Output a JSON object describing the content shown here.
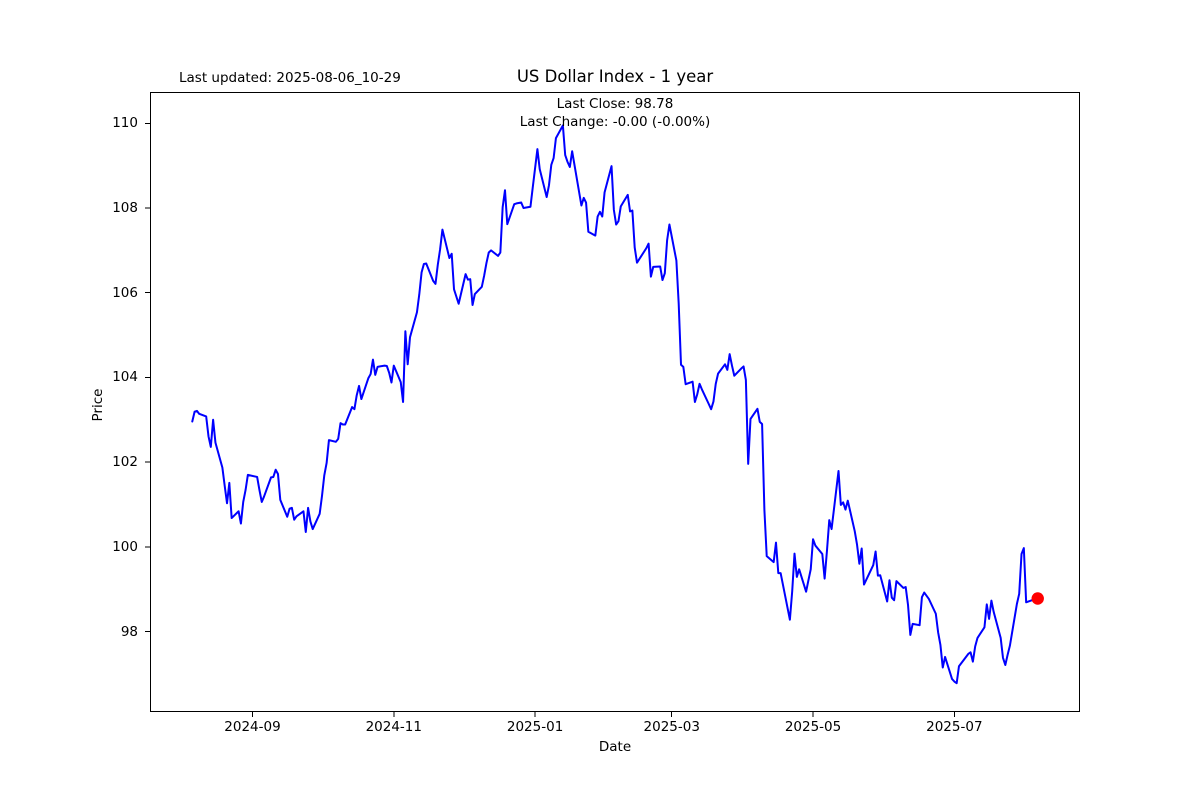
{
  "figure": {
    "last_updated": "Last updated: 2025-08-06_10-29",
    "title": "US Dollar Index - 1 year",
    "annotation": {
      "line1": "Last Close: 98.78",
      "line2": "Last Change: -0.00 (-0.00%)"
    },
    "xlabel": "Date",
    "ylabel": "Price"
  },
  "chart_data": {
    "type": "line",
    "title": "US Dollar Index - 1 year",
    "xlabel": "Date",
    "ylabel": "Price",
    "grid": false,
    "legend": false,
    "background": "#ffffff",
    "line_color": "#0000ff",
    "line_width": 2,
    "last_point_marker": {
      "color": "#ff0000",
      "radius": 6.2
    },
    "x_start_date": "2024-08-06",
    "xlim_days": [
      -18.25,
      383.25
    ],
    "ylim": [
      96.1,
      110.74
    ],
    "y_ticks": [
      98,
      100,
      102,
      104,
      106,
      108,
      110
    ],
    "x_ticks": [
      {
        "date": "2024-09-01",
        "label": "2024-09"
      },
      {
        "date": "2024-11-01",
        "label": "2024-11"
      },
      {
        "date": "2025-01-01",
        "label": "2025-01"
      },
      {
        "date": "2025-03-01",
        "label": "2025-03"
      },
      {
        "date": "2025-05-01",
        "label": "2025-05"
      },
      {
        "date": "2025-07-01",
        "label": "2025-07"
      }
    ],
    "series": [
      {
        "name": "US Dollar Index",
        "last_close": 98.78,
        "last_change": "-0.00 (-0.00%)",
        "points": [
          [
            "2024-08-06",
            102.96
          ],
          [
            "2024-08-07",
            103.19
          ],
          [
            "2024-08-08",
            103.21
          ],
          [
            "2024-08-09",
            103.14
          ],
          [
            "2024-08-12",
            103.08
          ],
          [
            "2024-08-13",
            102.61
          ],
          [
            "2024-08-14",
            102.36
          ],
          [
            "2024-08-15",
            103.0
          ],
          [
            "2024-08-16",
            102.46
          ],
          [
            "2024-08-19",
            101.87
          ],
          [
            "2024-08-20",
            101.44
          ],
          [
            "2024-08-21",
            101.03
          ],
          [
            "2024-08-22",
            101.51
          ],
          [
            "2024-08-23",
            100.68
          ],
          [
            "2024-08-26",
            100.84
          ],
          [
            "2024-08-27",
            100.55
          ],
          [
            "2024-08-28",
            101.06
          ],
          [
            "2024-08-29",
            101.34
          ],
          [
            "2024-08-30",
            101.7
          ],
          [
            "2024-09-03",
            101.65
          ],
          [
            "2024-09-04",
            101.34
          ],
          [
            "2024-09-05",
            101.06
          ],
          [
            "2024-09-06",
            101.19
          ],
          [
            "2024-09-09",
            101.64
          ],
          [
            "2024-09-10",
            101.65
          ],
          [
            "2024-09-11",
            101.82
          ],
          [
            "2024-09-12",
            101.72
          ],
          [
            "2024-09-13",
            101.11
          ],
          [
            "2024-09-16",
            100.71
          ],
          [
            "2024-09-17",
            100.9
          ],
          [
            "2024-09-18",
            100.92
          ],
          [
            "2024-09-19",
            100.64
          ],
          [
            "2024-09-20",
            100.72
          ],
          [
            "2024-09-23",
            100.84
          ],
          [
            "2024-09-24",
            100.35
          ],
          [
            "2024-09-25",
            100.92
          ],
          [
            "2024-09-26",
            100.6
          ],
          [
            "2024-09-27",
            100.42
          ],
          [
            "2024-09-30",
            100.78
          ],
          [
            "2024-10-01",
            101.2
          ],
          [
            "2024-10-02",
            101.69
          ],
          [
            "2024-10-03",
            101.98
          ],
          [
            "2024-10-04",
            102.52
          ],
          [
            "2024-10-07",
            102.48
          ],
          [
            "2024-10-08",
            102.55
          ],
          [
            "2024-10-09",
            102.92
          ],
          [
            "2024-10-10",
            102.89
          ],
          [
            "2024-10-11",
            102.89
          ],
          [
            "2024-10-14",
            103.3
          ],
          [
            "2024-10-15",
            103.25
          ],
          [
            "2024-10-16",
            103.58
          ],
          [
            "2024-10-17",
            103.8
          ],
          [
            "2024-10-18",
            103.49
          ],
          [
            "2024-10-21",
            103.98
          ],
          [
            "2024-10-22",
            104.08
          ],
          [
            "2024-10-23",
            104.42
          ],
          [
            "2024-10-24",
            104.06
          ],
          [
            "2024-10-25",
            104.25
          ],
          [
            "2024-10-28",
            104.28
          ],
          [
            "2024-10-29",
            104.27
          ],
          [
            "2024-10-30",
            104.11
          ],
          [
            "2024-10-31",
            103.88
          ],
          [
            "2024-11-01",
            104.28
          ],
          [
            "2024-11-04",
            103.89
          ],
          [
            "2024-11-05",
            103.42
          ],
          [
            "2024-11-06",
            105.09
          ],
          [
            "2024-11-07",
            104.31
          ],
          [
            "2024-11-08",
            104.95
          ],
          [
            "2024-11-11",
            105.54
          ],
          [
            "2024-11-12",
            105.96
          ],
          [
            "2024-11-13",
            106.48
          ],
          [
            "2024-11-14",
            106.68
          ],
          [
            "2024-11-15",
            106.69
          ],
          [
            "2024-11-18",
            106.28
          ],
          [
            "2024-11-19",
            106.21
          ],
          [
            "2024-11-20",
            106.66
          ],
          [
            "2024-11-21",
            107.03
          ],
          [
            "2024-11-22",
            107.49
          ],
          [
            "2024-11-25",
            106.82
          ],
          [
            "2024-11-26",
            106.92
          ],
          [
            "2024-11-27",
            106.08
          ],
          [
            "2024-11-29",
            105.74
          ],
          [
            "2024-12-02",
            106.44
          ],
          [
            "2024-12-03",
            106.31
          ],
          [
            "2024-12-04",
            106.32
          ],
          [
            "2024-12-05",
            105.71
          ],
          [
            "2024-12-06",
            105.97
          ],
          [
            "2024-12-09",
            106.14
          ],
          [
            "2024-12-10",
            106.4
          ],
          [
            "2024-12-11",
            106.7
          ],
          [
            "2024-12-12",
            106.95
          ],
          [
            "2024-12-13",
            107.0
          ],
          [
            "2024-12-16",
            106.87
          ],
          [
            "2024-12-17",
            106.95
          ],
          [
            "2024-12-18",
            108.02
          ],
          [
            "2024-12-19",
            108.42
          ],
          [
            "2024-12-20",
            107.62
          ],
          [
            "2024-12-23",
            108.09
          ],
          [
            "2024-12-24",
            108.11
          ],
          [
            "2024-12-26",
            108.13
          ],
          [
            "2024-12-27",
            108.0
          ],
          [
            "2024-12-30",
            108.03
          ],
          [
            "2024-12-31",
            108.49
          ],
          [
            "2025-01-02",
            109.39
          ],
          [
            "2025-01-03",
            108.92
          ],
          [
            "2025-01-06",
            108.26
          ],
          [
            "2025-01-07",
            108.54
          ],
          [
            "2025-01-08",
            109.02
          ],
          [
            "2025-01-09",
            109.18
          ],
          [
            "2025-01-10",
            109.65
          ],
          [
            "2025-01-13",
            109.95
          ],
          [
            "2025-01-14",
            109.25
          ],
          [
            "2025-01-15",
            109.09
          ],
          [
            "2025-01-16",
            108.97
          ],
          [
            "2025-01-17",
            109.34
          ],
          [
            "2025-01-21",
            108.06
          ],
          [
            "2025-01-22",
            108.24
          ],
          [
            "2025-01-23",
            108.13
          ],
          [
            "2025-01-24",
            107.44
          ],
          [
            "2025-01-27",
            107.35
          ],
          [
            "2025-01-28",
            107.8
          ],
          [
            "2025-01-29",
            107.91
          ],
          [
            "2025-01-30",
            107.8
          ],
          [
            "2025-01-31",
            108.37
          ],
          [
            "2025-02-03",
            108.99
          ],
          [
            "2025-02-04",
            107.96
          ],
          [
            "2025-02-05",
            107.61
          ],
          [
            "2025-02-06",
            107.69
          ],
          [
            "2025-02-07",
            108.04
          ],
          [
            "2025-02-10",
            108.31
          ],
          [
            "2025-02-11",
            107.92
          ],
          [
            "2025-02-12",
            107.94
          ],
          [
            "2025-02-13",
            107.07
          ],
          [
            "2025-02-14",
            106.71
          ],
          [
            "2025-02-18",
            107.05
          ],
          [
            "2025-02-19",
            107.16
          ],
          [
            "2025-02-20",
            106.38
          ],
          [
            "2025-02-21",
            106.61
          ],
          [
            "2025-02-24",
            106.62
          ],
          [
            "2025-02-25",
            106.3
          ],
          [
            "2025-02-26",
            106.46
          ],
          [
            "2025-02-27",
            107.24
          ],
          [
            "2025-02-28",
            107.61
          ],
          [
            "2025-03-03",
            106.76
          ],
          [
            "2025-03-04",
            105.74
          ],
          [
            "2025-03-05",
            104.3
          ],
          [
            "2025-03-06",
            104.25
          ],
          [
            "2025-03-07",
            103.84
          ],
          [
            "2025-03-10",
            103.9
          ],
          [
            "2025-03-11",
            103.42
          ],
          [
            "2025-03-12",
            103.6
          ],
          [
            "2025-03-13",
            103.85
          ],
          [
            "2025-03-14",
            103.72
          ],
          [
            "2025-03-17",
            103.37
          ],
          [
            "2025-03-18",
            103.25
          ],
          [
            "2025-03-19",
            103.43
          ],
          [
            "2025-03-20",
            103.85
          ],
          [
            "2025-03-21",
            104.09
          ],
          [
            "2025-03-24",
            104.31
          ],
          [
            "2025-03-25",
            104.18
          ],
          [
            "2025-03-26",
            104.55
          ],
          [
            "2025-03-27",
            104.28
          ],
          [
            "2025-03-28",
            104.04
          ],
          [
            "2025-03-31",
            104.21
          ],
          [
            "2025-04-01",
            104.26
          ],
          [
            "2025-04-02",
            103.94
          ],
          [
            "2025-04-03",
            101.96
          ],
          [
            "2025-04-04",
            103.02
          ],
          [
            "2025-04-07",
            103.26
          ],
          [
            "2025-04-08",
            102.95
          ],
          [
            "2025-04-09",
            102.9
          ],
          [
            "2025-04-10",
            100.87
          ],
          [
            "2025-04-11",
            99.78
          ],
          [
            "2025-04-14",
            99.64
          ],
          [
            "2025-04-15",
            100.1
          ],
          [
            "2025-04-16",
            99.38
          ],
          [
            "2025-04-17",
            99.38
          ],
          [
            "2025-04-21",
            98.28
          ],
          [
            "2025-04-22",
            98.95
          ],
          [
            "2025-04-23",
            99.84
          ],
          [
            "2025-04-24",
            99.29
          ],
          [
            "2025-04-25",
            99.47
          ],
          [
            "2025-04-28",
            98.94
          ],
          [
            "2025-04-29",
            99.21
          ],
          [
            "2025-04-30",
            99.47
          ],
          [
            "2025-05-01",
            100.18
          ],
          [
            "2025-05-02",
            100.03
          ],
          [
            "2025-05-05",
            99.83
          ],
          [
            "2025-05-06",
            99.25
          ],
          [
            "2025-05-07",
            99.9
          ],
          [
            "2025-05-08",
            100.63
          ],
          [
            "2025-05-09",
            100.42
          ],
          [
            "2025-05-12",
            101.79
          ],
          [
            "2025-05-13",
            100.99
          ],
          [
            "2025-05-14",
            101.05
          ],
          [
            "2025-05-15",
            100.88
          ],
          [
            "2025-05-16",
            101.09
          ],
          [
            "2025-05-19",
            100.37
          ],
          [
            "2025-05-20",
            100.05
          ],
          [
            "2025-05-21",
            99.6
          ],
          [
            "2025-05-22",
            99.96
          ],
          [
            "2025-05-23",
            99.11
          ],
          [
            "2025-05-27",
            99.57
          ],
          [
            "2025-05-28",
            99.89
          ],
          [
            "2025-05-29",
            99.32
          ],
          [
            "2025-05-30",
            99.33
          ],
          [
            "2025-06-02",
            98.71
          ],
          [
            "2025-06-03",
            99.21
          ],
          [
            "2025-06-04",
            98.8
          ],
          [
            "2025-06-05",
            98.74
          ],
          [
            "2025-06-06",
            99.19
          ],
          [
            "2025-06-09",
            99.03
          ],
          [
            "2025-06-10",
            99.05
          ],
          [
            "2025-06-11",
            98.63
          ],
          [
            "2025-06-12",
            97.92
          ],
          [
            "2025-06-13",
            98.18
          ],
          [
            "2025-06-16",
            98.15
          ],
          [
            "2025-06-17",
            98.81
          ],
          [
            "2025-06-18",
            98.92
          ],
          [
            "2025-06-20",
            98.77
          ],
          [
            "2025-06-23",
            98.42
          ],
          [
            "2025-06-24",
            97.98
          ],
          [
            "2025-06-25",
            97.68
          ],
          [
            "2025-06-26",
            97.15
          ],
          [
            "2025-06-27",
            97.4
          ],
          [
            "2025-06-30",
            96.88
          ],
          [
            "2025-07-01",
            96.82
          ],
          [
            "2025-07-02",
            96.78
          ],
          [
            "2025-07-03",
            97.18
          ],
          [
            "2025-07-07",
            97.47
          ],
          [
            "2025-07-08",
            97.51
          ],
          [
            "2025-07-09",
            97.29
          ],
          [
            "2025-07-10",
            97.65
          ],
          [
            "2025-07-11",
            97.85
          ],
          [
            "2025-07-14",
            98.1
          ],
          [
            "2025-07-15",
            98.64
          ],
          [
            "2025-07-16",
            98.3
          ],
          [
            "2025-07-17",
            98.73
          ],
          [
            "2025-07-18",
            98.46
          ],
          [
            "2025-07-21",
            97.85
          ],
          [
            "2025-07-22",
            97.38
          ],
          [
            "2025-07-23",
            97.21
          ],
          [
            "2025-07-24",
            97.45
          ],
          [
            "2025-07-25",
            97.67
          ],
          [
            "2025-07-28",
            98.65
          ],
          [
            "2025-07-29",
            98.89
          ],
          [
            "2025-07-30",
            99.83
          ],
          [
            "2025-07-31",
            99.97
          ],
          [
            "2025-08-01",
            98.69
          ],
          [
            "2025-08-04",
            98.75
          ],
          [
            "2025-08-05",
            98.78
          ],
          [
            "2025-08-06",
            98.78
          ]
        ]
      }
    ]
  }
}
